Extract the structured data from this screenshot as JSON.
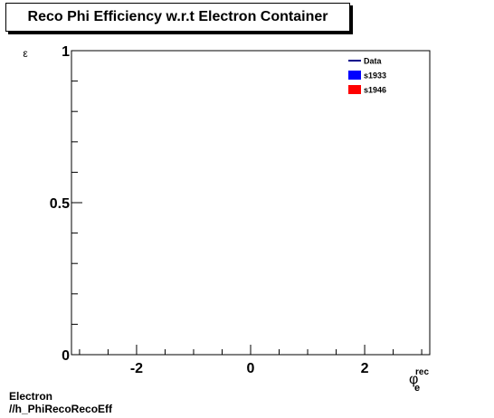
{
  "chart_data": {
    "type": "line",
    "title": "Reco Phi Efficiency w.r.t Electron Container",
    "ylabel": "ε",
    "xlabel": {
      "symbol": "φ",
      "superscript": "rec",
      "subscript": "e"
    },
    "xlim": [
      -3.14159,
      3.14159
    ],
    "ylim": [
      0,
      1
    ],
    "x_ticks": [
      {
        "value": -2,
        "label": "-2"
      },
      {
        "value": 0,
        "label": "0"
      },
      {
        "value": 2,
        "label": "2"
      }
    ],
    "y_ticks": [
      {
        "value": 0,
        "label": "0"
      },
      {
        "value": 0.5,
        "label": "0.5"
      },
      {
        "value": 1,
        "label": "1"
      }
    ],
    "grid": false,
    "legend_position": "top-right",
    "legend": [
      {
        "name": "Data",
        "style": "line",
        "color": "#00008b"
      },
      {
        "name": "s1933",
        "style": "box",
        "color": "#0000ff"
      },
      {
        "name": "s1946",
        "style": "box",
        "color": "#ff0000"
      }
    ],
    "series": [
      {
        "name": "Data",
        "values": []
      },
      {
        "name": "s1933",
        "values": []
      },
      {
        "name": "s1946",
        "values": []
      }
    ]
  },
  "footer": {
    "line1": "Electron",
    "line2": "//h_PhiRecoRecoEff"
  }
}
